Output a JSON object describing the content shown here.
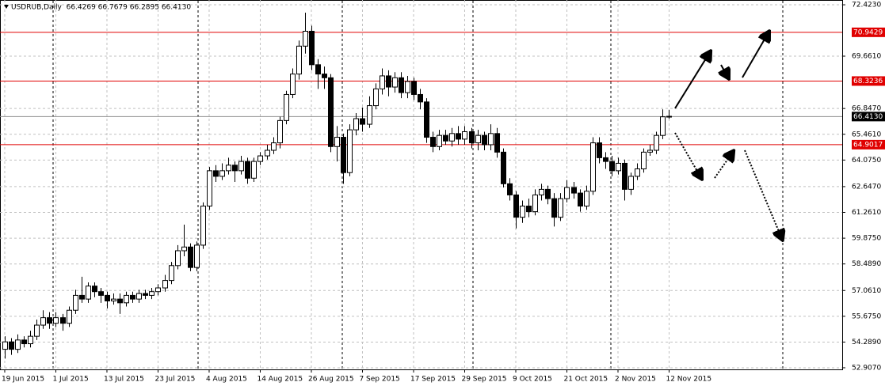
{
  "chart_data": {
    "type": "candlestick",
    "title": "USDRUB,Daily  66.4269 66.7679 66.2895 66.4130",
    "open": [
      53.9,
      54.3,
      53.9,
      54.4,
      54.2,
      54.6,
      55.2,
      55.6,
      55.3,
      55.6,
      55.3,
      56.0,
      56.8,
      56.6,
      57.3,
      57.0,
      56.8,
      56.5,
      56.6,
      56.4,
      56.8,
      56.6,
      56.9,
      56.8,
      57.0,
      57.2,
      57.6,
      58.4,
      59.2,
      59.4,
      58.3,
      59.5,
      61.6,
      63.5,
      63.2,
      63.5,
      63.8,
      63.5,
      64.0,
      63.1,
      64.0,
      64.3,
      64.6,
      65.0,
      66.2,
      67.6,
      68.7,
      70.2,
      71.0,
      69.2,
      68.7,
      68.5,
      64.8,
      65.3,
      63.4,
      65.7,
      66.3,
      66.0,
      67.0,
      67.9,
      68.6,
      68.0,
      68.5,
      67.7,
      68.3,
      67.6,
      67.2,
      65.3,
      64.8,
      65.4,
      65.1,
      65.5,
      65.2,
      65.6,
      65.0,
      65.4,
      64.9,
      65.5,
      64.5,
      62.8,
      62.2,
      61.0,
      61.6,
      61.3,
      62.2,
      62.5,
      62.0,
      61.0,
      62.0,
      62.6,
      62.3,
      61.6,
      62.4,
      65.0,
      64.2,
      64.0,
      63.5,
      63.9,
      62.5,
      63.2,
      63.6,
      64.5,
      64.6,
      65.4,
      66.4269
    ],
    "high": [
      54.6,
      54.5,
      54.7,
      54.6,
      54.9,
      55.5,
      56.0,
      55.9,
      55.9,
      55.8,
      56.2,
      57.1,
      57.8,
      57.5,
      57.5,
      57.2,
      57.0,
      56.9,
      56.9,
      57.0,
      57.0,
      57.1,
      57.1,
      57.2,
      57.4,
      57.9,
      58.6,
      59.5,
      60.6,
      59.6,
      59.7,
      61.8,
      63.7,
      63.8,
      63.9,
      64.2,
      64.0,
      64.3,
      64.2,
      64.2,
      64.5,
      64.9,
      65.3,
      66.4,
      67.8,
      69.0,
      70.5,
      72.0,
      71.3,
      69.5,
      69.1,
      68.7,
      65.9,
      65.5,
      66.0,
      66.6,
      66.9,
      67.5,
      68.2,
      69.0,
      68.9,
      68.8,
      68.8,
      68.6,
      68.5,
      67.9,
      67.4,
      65.6,
      65.7,
      65.7,
      65.8,
      65.9,
      65.9,
      65.8,
      65.7,
      65.6,
      66.0,
      65.8,
      64.7,
      63.1,
      62.4,
      61.9,
      62.0,
      62.5,
      62.8,
      62.7,
      62.3,
      62.3,
      63.0,
      62.9,
      62.5,
      62.7,
      65.3,
      65.3,
      64.5,
      64.3,
      64.2,
      64.1,
      63.4,
      63.9,
      64.7,
      64.9,
      65.6,
      66.8,
      66.7679
    ],
    "low": [
      53.4,
      53.6,
      53.7,
      54.0,
      54.0,
      54.4,
      55.0,
      55.0,
      55.1,
      54.9,
      55.1,
      55.8,
      56.4,
      56.4,
      56.7,
      56.4,
      56.1,
      56.3,
      55.8,
      56.2,
      56.4,
      56.4,
      56.6,
      56.6,
      56.8,
      57.0,
      57.4,
      58.2,
      58.9,
      58.1,
      58.1,
      59.3,
      61.4,
      62.9,
      63.0,
      63.3,
      62.9,
      63.3,
      62.8,
      62.9,
      63.8,
      64.1,
      64.4,
      64.7,
      66.0,
      67.4,
      68.4,
      69.8,
      68.9,
      67.9,
      67.9,
      64.5,
      64.0,
      62.8,
      63.2,
      65.4,
      65.6,
      65.8,
      66.8,
      67.6,
      67.5,
      67.7,
      67.4,
      67.4,
      67.3,
      66.8,
      65.0,
      64.5,
      64.6,
      64.9,
      64.8,
      64.9,
      64.9,
      64.7,
      64.6,
      64.6,
      64.6,
      64.2,
      62.6,
      61.9,
      60.4,
      60.7,
      61.0,
      61.1,
      61.9,
      61.7,
      60.5,
      60.8,
      61.8,
      62.0,
      61.3,
      61.4,
      62.2,
      63.9,
      63.6,
      63.2,
      63.3,
      61.9,
      62.2,
      63.0,
      63.4,
      64.3,
      64.4,
      65.2,
      66.2895
    ],
    "close": [
      54.3,
      53.9,
      54.4,
      54.2,
      54.6,
      55.2,
      55.6,
      55.3,
      55.6,
      55.3,
      56.0,
      56.8,
      56.6,
      57.3,
      57.0,
      56.8,
      56.5,
      56.6,
      56.4,
      56.8,
      56.6,
      56.9,
      56.8,
      57.0,
      57.2,
      57.6,
      58.4,
      59.2,
      59.4,
      58.3,
      59.5,
      61.6,
      63.5,
      63.2,
      63.5,
      63.8,
      63.5,
      64.0,
      63.1,
      64.0,
      64.3,
      64.6,
      65.0,
      66.2,
      67.6,
      68.7,
      70.2,
      71.0,
      69.2,
      68.7,
      68.5,
      64.8,
      65.3,
      63.4,
      65.7,
      66.3,
      66.0,
      67.0,
      67.9,
      68.6,
      68.0,
      68.5,
      67.7,
      68.3,
      67.6,
      67.2,
      65.3,
      64.8,
      65.4,
      65.1,
      65.5,
      65.2,
      65.6,
      65.0,
      65.4,
      64.9,
      65.5,
      64.5,
      62.8,
      62.2,
      61.0,
      61.6,
      61.3,
      62.2,
      62.5,
      62.0,
      61.0,
      62.0,
      62.6,
      62.3,
      61.6,
      62.4,
      65.0,
      64.2,
      64.0,
      63.5,
      63.9,
      62.5,
      63.2,
      63.6,
      64.5,
      64.6,
      65.4,
      66.4,
      66.413
    ],
    "xlim": [
      -0.74,
      131.1
    ],
    "xticks": [
      {
        "value": 0,
        "label": "19 Jun 2015"
      },
      {
        "value": 8,
        "label": "1 Jul 2015"
      },
      {
        "value": 16,
        "label": "13 Jul 2015"
      },
      {
        "value": 24,
        "label": "23 Jul 2015"
      },
      {
        "value": 32,
        "label": "4 Aug 2015"
      },
      {
        "value": 40,
        "label": "14 Aug 2015"
      },
      {
        "value": 48,
        "label": "26 Aug 2015"
      },
      {
        "value": 56,
        "label": "7 Sep 2015"
      },
      {
        "value": 64,
        "label": "17 Sep 2015"
      },
      {
        "value": 72,
        "label": "29 Sep 2015"
      },
      {
        "value": 80,
        "label": "9 Oct 2015"
      },
      {
        "value": 88,
        "label": "21 Oct 2015"
      },
      {
        "value": 96,
        "label": "2 Nov 2015"
      },
      {
        "value": 104,
        "label": "12 Nov 2015"
      }
    ],
    "ylim": [
      52.82,
      72.68
    ],
    "yticks": [
      {
        "value": 72.423,
        "label": "72.4230"
      },
      {
        "value": 69.661,
        "label": "69.6610"
      },
      {
        "value": 66.847,
        "label": "66.8470"
      },
      {
        "value": 65.461,
        "label": "65.4610"
      },
      {
        "value": 64.075,
        "label": "64.0750"
      },
      {
        "value": 62.647,
        "label": "62.6470"
      },
      {
        "value": 61.261,
        "label": "61.2610"
      },
      {
        "value": 59.875,
        "label": "59.8750"
      },
      {
        "value": 58.489,
        "label": "58.4890"
      },
      {
        "value": 57.061,
        "label": "57.0610"
      },
      {
        "value": 55.675,
        "label": "55.6750"
      },
      {
        "value": 54.289,
        "label": "54.2890"
      },
      {
        "value": 52.907,
        "label": "52.9070"
      }
    ],
    "levels": [
      {
        "value": 70.9429,
        "color": "#e00000"
      },
      {
        "value": 68.3236,
        "color": "#e00000"
      },
      {
        "value": 64.9017,
        "color": "#e00000"
      }
    ],
    "current_price": {
      "value": 66.413,
      "label": "66.4130",
      "color": "#909090"
    },
    "grid": true
  }
}
